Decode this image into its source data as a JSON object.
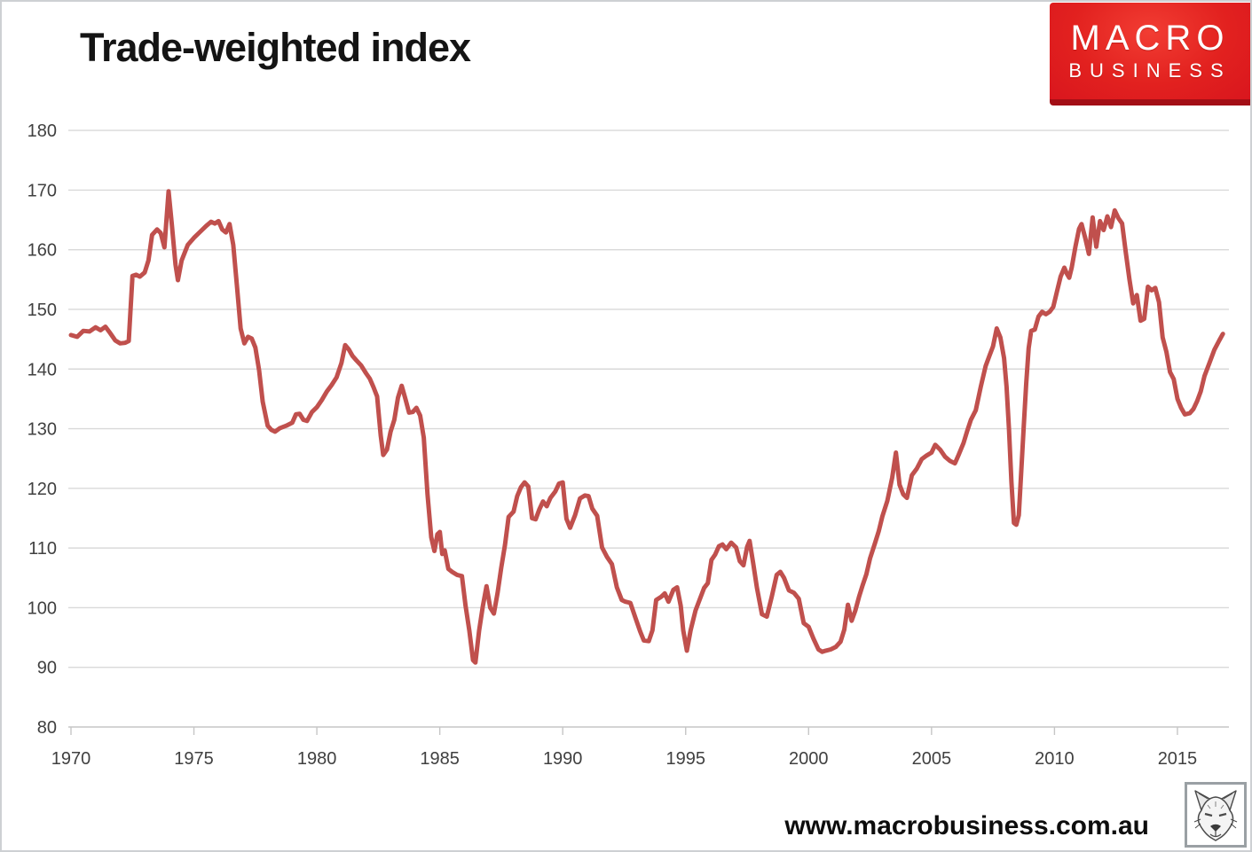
{
  "page": {
    "title": "Trade-weighted index",
    "footer_url": "www.macrobusiness.com.au"
  },
  "logo": {
    "line1": "MACRO",
    "line2": "BUSINESS",
    "bg_color": "#e2211f",
    "strip_color": "#a30f16",
    "text_color": "#ffffff"
  },
  "icons": {
    "wolf_logo": "wolf-sketch-icon"
  },
  "chart_data": {
    "type": "line",
    "title": "Trade-weighted index",
    "xlabel": "",
    "ylabel": "",
    "xlim": [
      1969.9,
      2017.3
    ],
    "ylim": [
      80,
      180
    ],
    "grid": "horizontal",
    "legend_position": "none",
    "x_ticks": [
      1970,
      1975,
      1980,
      1985,
      1990,
      1995,
      2000,
      2005,
      2010,
      2015
    ],
    "y_ticks": [
      80,
      90,
      100,
      110,
      120,
      130,
      140,
      150,
      160,
      170,
      180
    ],
    "colors": {
      "line": "#c0504d",
      "gridline": "#d9d9d9",
      "axis": "#c6c6c6",
      "tick_label": "#404040"
    },
    "series": [
      {
        "name": "Trade-weighted index",
        "color": "#c0504d",
        "points": [
          [
            1970.0,
            145.7
          ],
          [
            1970.25,
            145.4
          ],
          [
            1970.5,
            146.4
          ],
          [
            1970.75,
            146.3
          ],
          [
            1971.0,
            147.0
          ],
          [
            1971.2,
            146.5
          ],
          [
            1971.4,
            147.1
          ],
          [
            1971.6,
            146.0
          ],
          [
            1971.8,
            144.8
          ],
          [
            1972.0,
            144.3
          ],
          [
            1972.2,
            144.4
          ],
          [
            1972.35,
            144.7
          ],
          [
            1972.5,
            155.6
          ],
          [
            1972.65,
            155.8
          ],
          [
            1972.8,
            155.5
          ],
          [
            1973.0,
            156.2
          ],
          [
            1973.15,
            158.2
          ],
          [
            1973.3,
            162.5
          ],
          [
            1973.5,
            163.4
          ],
          [
            1973.65,
            162.8
          ],
          [
            1973.8,
            160.4
          ],
          [
            1973.97,
            169.8
          ],
          [
            1974.1,
            164.3
          ],
          [
            1974.25,
            157.5
          ],
          [
            1974.35,
            154.9
          ],
          [
            1974.5,
            158.2
          ],
          [
            1974.75,
            160.8
          ],
          [
            1975.0,
            162.0
          ],
          [
            1975.25,
            163.0
          ],
          [
            1975.5,
            164.0
          ],
          [
            1975.7,
            164.7
          ],
          [
            1975.85,
            164.4
          ],
          [
            1976.0,
            164.8
          ],
          [
            1976.15,
            163.4
          ],
          [
            1976.3,
            162.9
          ],
          [
            1976.45,
            164.3
          ],
          [
            1976.6,
            160.8
          ],
          [
            1976.75,
            154.0
          ],
          [
            1976.9,
            146.8
          ],
          [
            1977.05,
            144.3
          ],
          [
            1977.2,
            145.4
          ],
          [
            1977.35,
            145.1
          ],
          [
            1977.5,
            143.6
          ],
          [
            1977.65,
            139.8
          ],
          [
            1977.8,
            134.5
          ],
          [
            1978.0,
            130.5
          ],
          [
            1978.15,
            129.8
          ],
          [
            1978.3,
            129.5
          ],
          [
            1978.5,
            130.1
          ],
          [
            1978.75,
            130.5
          ],
          [
            1979.0,
            131.0
          ],
          [
            1979.15,
            132.4
          ],
          [
            1979.3,
            132.5
          ],
          [
            1979.45,
            131.5
          ],
          [
            1979.6,
            131.3
          ],
          [
            1979.8,
            132.8
          ],
          [
            1980.0,
            133.6
          ],
          [
            1980.2,
            134.8
          ],
          [
            1980.4,
            136.2
          ],
          [
            1980.6,
            137.3
          ],
          [
            1980.8,
            138.6
          ],
          [
            1981.0,
            141.0
          ],
          [
            1981.15,
            144.0
          ],
          [
            1981.3,
            143.3
          ],
          [
            1981.45,
            142.2
          ],
          [
            1981.6,
            141.5
          ],
          [
            1981.8,
            140.6
          ],
          [
            1982.0,
            139.3
          ],
          [
            1982.15,
            138.4
          ],
          [
            1982.3,
            137.0
          ],
          [
            1982.45,
            135.4
          ],
          [
            1982.6,
            128.8
          ],
          [
            1982.7,
            125.6
          ],
          [
            1982.85,
            126.5
          ],
          [
            1983.0,
            129.5
          ],
          [
            1983.15,
            131.5
          ],
          [
            1983.3,
            135.2
          ],
          [
            1983.45,
            137.2
          ],
          [
            1983.6,
            135.0
          ],
          [
            1983.75,
            132.7
          ],
          [
            1983.9,
            132.8
          ],
          [
            1984.05,
            133.5
          ],
          [
            1984.2,
            132.2
          ],
          [
            1984.35,
            128.5
          ],
          [
            1984.5,
            119.0
          ],
          [
            1984.65,
            111.8
          ],
          [
            1984.78,
            109.5
          ],
          [
            1984.9,
            112.3
          ],
          [
            1985.0,
            112.7
          ],
          [
            1985.1,
            109.0
          ],
          [
            1985.2,
            109.6
          ],
          [
            1985.35,
            106.5
          ],
          [
            1985.5,
            106.0
          ],
          [
            1985.7,
            105.5
          ],
          [
            1985.9,
            105.3
          ],
          [
            1986.05,
            100.3
          ],
          [
            1986.2,
            96.2
          ],
          [
            1986.35,
            91.2
          ],
          [
            1986.45,
            90.8
          ],
          [
            1986.6,
            96.2
          ],
          [
            1986.75,
            100.2
          ],
          [
            1986.9,
            103.6
          ],
          [
            1987.05,
            100.0
          ],
          [
            1987.2,
            99.0
          ],
          [
            1987.35,
            102.5
          ],
          [
            1987.5,
            106.7
          ],
          [
            1987.65,
            110.5
          ],
          [
            1987.8,
            115.2
          ],
          [
            1988.0,
            116.1
          ],
          [
            1988.15,
            118.7
          ],
          [
            1988.3,
            120.2
          ],
          [
            1988.45,
            121.0
          ],
          [
            1988.6,
            120.3
          ],
          [
            1988.75,
            115.0
          ],
          [
            1988.9,
            114.8
          ],
          [
            1989.05,
            116.5
          ],
          [
            1989.2,
            117.8
          ],
          [
            1989.35,
            117.0
          ],
          [
            1989.5,
            118.4
          ],
          [
            1989.7,
            119.5
          ],
          [
            1989.85,
            120.8
          ],
          [
            1990.0,
            121.0
          ],
          [
            1990.15,
            114.9
          ],
          [
            1990.3,
            113.4
          ],
          [
            1990.5,
            115.5
          ],
          [
            1990.7,
            118.3
          ],
          [
            1990.9,
            118.8
          ],
          [
            1991.05,
            118.7
          ],
          [
            1991.2,
            116.6
          ],
          [
            1991.4,
            115.4
          ],
          [
            1991.6,
            110.1
          ],
          [
            1991.8,
            108.5
          ],
          [
            1992.0,
            107.3
          ],
          [
            1992.2,
            103.4
          ],
          [
            1992.4,
            101.3
          ],
          [
            1992.55,
            101.0
          ],
          [
            1992.75,
            100.8
          ],
          [
            1992.95,
            98.4
          ],
          [
            1993.15,
            96.0
          ],
          [
            1993.3,
            94.5
          ],
          [
            1993.5,
            94.4
          ],
          [
            1993.65,
            96.2
          ],
          [
            1993.8,
            101.3
          ],
          [
            1994.0,
            101.8
          ],
          [
            1994.15,
            102.4
          ],
          [
            1994.3,
            101.0
          ],
          [
            1994.5,
            103.0
          ],
          [
            1994.65,
            103.4
          ],
          [
            1994.8,
            100.3
          ],
          [
            1994.9,
            96.2
          ],
          [
            1995.05,
            92.8
          ],
          [
            1995.2,
            96.2
          ],
          [
            1995.4,
            99.5
          ],
          [
            1995.6,
            101.7
          ],
          [
            1995.75,
            103.3
          ],
          [
            1995.9,
            104.1
          ],
          [
            1996.05,
            108.0
          ],
          [
            1996.2,
            108.9
          ],
          [
            1996.35,
            110.3
          ],
          [
            1996.5,
            110.6
          ],
          [
            1996.65,
            109.8
          ],
          [
            1996.85,
            110.9
          ],
          [
            1997.05,
            110.1
          ],
          [
            1997.2,
            107.8
          ],
          [
            1997.35,
            107.1
          ],
          [
            1997.5,
            110.2
          ],
          [
            1997.6,
            111.2
          ],
          [
            1997.75,
            107.3
          ],
          [
            1997.9,
            103.3
          ],
          [
            1998.1,
            98.9
          ],
          [
            1998.3,
            98.5
          ],
          [
            1998.5,
            101.8
          ],
          [
            1998.7,
            105.5
          ],
          [
            1998.85,
            106.0
          ],
          [
            1999.0,
            105.0
          ],
          [
            1999.2,
            102.9
          ],
          [
            1999.4,
            102.5
          ],
          [
            1999.6,
            101.5
          ],
          [
            1999.8,
            97.4
          ],
          [
            2000.0,
            96.8
          ],
          [
            2000.2,
            94.8
          ],
          [
            2000.4,
            93.0
          ],
          [
            2000.55,
            92.6
          ],
          [
            2000.7,
            92.8
          ],
          [
            2000.9,
            93.0
          ],
          [
            2001.1,
            93.4
          ],
          [
            2001.3,
            94.3
          ],
          [
            2001.45,
            96.3
          ],
          [
            2001.6,
            100.5
          ],
          [
            2001.75,
            97.8
          ],
          [
            2001.9,
            99.5
          ],
          [
            2002.05,
            101.8
          ],
          [
            2002.2,
            103.8
          ],
          [
            2002.35,
            105.6
          ],
          [
            2002.5,
            108.3
          ],
          [
            2002.7,
            110.8
          ],
          [
            2002.85,
            112.8
          ],
          [
            2003.0,
            115.3
          ],
          [
            2003.2,
            117.9
          ],
          [
            2003.4,
            121.8
          ],
          [
            2003.55,
            126.0
          ],
          [
            2003.7,
            120.6
          ],
          [
            2003.85,
            119.0
          ],
          [
            2004.0,
            118.4
          ],
          [
            2004.2,
            122.2
          ],
          [
            2004.4,
            123.3
          ],
          [
            2004.6,
            124.9
          ],
          [
            2004.8,
            125.5
          ],
          [
            2005.0,
            126.0
          ],
          [
            2005.15,
            127.3
          ],
          [
            2005.35,
            126.5
          ],
          [
            2005.55,
            125.3
          ],
          [
            2005.75,
            124.6
          ],
          [
            2005.95,
            124.2
          ],
          [
            2006.1,
            125.6
          ],
          [
            2006.3,
            127.6
          ],
          [
            2006.45,
            129.6
          ],
          [
            2006.6,
            131.5
          ],
          [
            2006.8,
            133.1
          ],
          [
            2007.0,
            137.0
          ],
          [
            2007.2,
            140.5
          ],
          [
            2007.35,
            142.2
          ],
          [
            2007.5,
            143.8
          ],
          [
            2007.65,
            146.8
          ],
          [
            2007.8,
            145.3
          ],
          [
            2007.95,
            141.8
          ],
          [
            2008.05,
            137.0
          ],
          [
            2008.15,
            130.0
          ],
          [
            2008.25,
            121.0
          ],
          [
            2008.35,
            114.2
          ],
          [
            2008.45,
            113.9
          ],
          [
            2008.55,
            115.5
          ],
          [
            2008.65,
            123.0
          ],
          [
            2008.75,
            130.5
          ],
          [
            2008.85,
            137.5
          ],
          [
            2008.95,
            143.5
          ],
          [
            2009.05,
            146.4
          ],
          [
            2009.2,
            146.6
          ],
          [
            2009.35,
            148.8
          ],
          [
            2009.5,
            149.6
          ],
          [
            2009.65,
            149.2
          ],
          [
            2009.8,
            149.6
          ],
          [
            2009.95,
            150.4
          ],
          [
            2010.1,
            153.0
          ],
          [
            2010.25,
            155.5
          ],
          [
            2010.4,
            157.0
          ],
          [
            2010.5,
            156.0
          ],
          [
            2010.6,
            155.3
          ],
          [
            2010.7,
            157.0
          ],
          [
            2010.85,
            160.5
          ],
          [
            2011.0,
            163.5
          ],
          [
            2011.1,
            164.3
          ],
          [
            2011.25,
            162.0
          ],
          [
            2011.4,
            159.3
          ],
          [
            2011.55,
            165.4
          ],
          [
            2011.7,
            160.5
          ],
          [
            2011.85,
            164.8
          ],
          [
            2012.0,
            163.3
          ],
          [
            2012.15,
            165.6
          ],
          [
            2012.3,
            163.8
          ],
          [
            2012.45,
            166.6
          ],
          [
            2012.6,
            165.3
          ],
          [
            2012.75,
            164.4
          ],
          [
            2012.9,
            159.5
          ],
          [
            2013.05,
            155.0
          ],
          [
            2013.2,
            151.0
          ],
          [
            2013.35,
            152.4
          ],
          [
            2013.5,
            148.1
          ],
          [
            2013.65,
            148.4
          ],
          [
            2013.8,
            153.8
          ],
          [
            2013.95,
            153.2
          ],
          [
            2014.1,
            153.6
          ],
          [
            2014.25,
            151.2
          ],
          [
            2014.4,
            145.3
          ],
          [
            2014.55,
            142.9
          ],
          [
            2014.7,
            139.5
          ],
          [
            2014.85,
            138.3
          ],
          [
            2015.0,
            135.0
          ],
          [
            2015.15,
            133.5
          ],
          [
            2015.3,
            132.4
          ],
          [
            2015.5,
            132.6
          ],
          [
            2015.65,
            133.3
          ],
          [
            2015.8,
            134.6
          ],
          [
            2015.95,
            136.3
          ],
          [
            2016.1,
            138.8
          ],
          [
            2016.3,
            141.0
          ],
          [
            2016.5,
            143.2
          ],
          [
            2016.7,
            144.8
          ],
          [
            2016.85,
            145.9
          ]
        ]
      }
    ]
  }
}
